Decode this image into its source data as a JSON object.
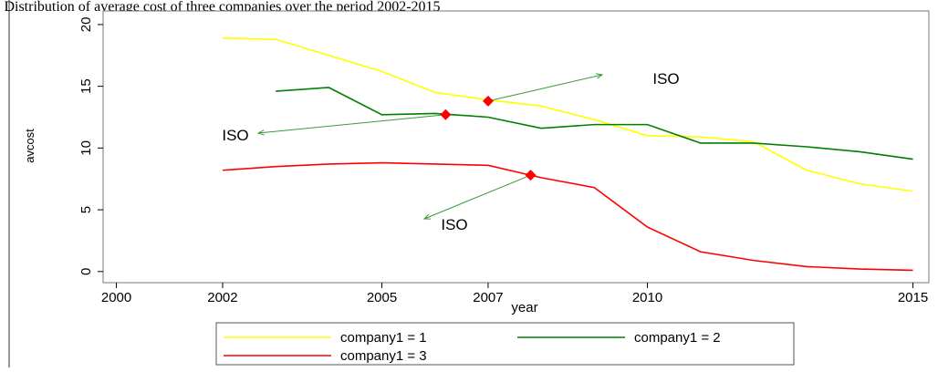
{
  "chart_data": {
    "type": "line",
    "title": ": Distribution of average cost of  three companies over the period 2002-2015",
    "x_label": "year",
    "y_label": "avcost",
    "x": [
      2002,
      2003,
      2004,
      2005,
      2006,
      2007,
      2008,
      2009,
      2010,
      2011,
      2012,
      2013,
      2014,
      2015
    ],
    "series": [
      {
        "name": "company1 = 1",
        "color": "#ffff00",
        "values": [
          18.9,
          18.8,
          17.5,
          16.2,
          14.5,
          13.9,
          13.4,
          12.3,
          11.0,
          10.9,
          10.5,
          8.2,
          7.1,
          6.5
        ]
      },
      {
        "name": "company1 = 2",
        "color": "#007f00",
        "values": [
          null,
          14.6,
          14.9,
          12.7,
          12.8,
          12.5,
          11.6,
          11.9,
          11.9,
          10.4,
          10.4,
          10.1,
          9.7,
          9.1
        ]
      },
      {
        "name": "company1 = 3",
        "color": "#ff0000",
        "values": [
          8.2,
          8.5,
          8.7,
          8.8,
          8.7,
          8.6,
          7.6,
          6.8,
          3.6,
          1.6,
          0.9,
          0.4,
          0.2,
          0.1
        ]
      }
    ],
    "markers": {
      "color": "#ff0000",
      "x": [
        2007,
        2006.2,
        2007.8
      ],
      "y": [
        13.8,
        12.7,
        7.8
      ]
    },
    "annotations": [
      "ISO",
      "ISO",
      "ISO"
    ],
    "xlim": [
      1999.75,
      2015.3
    ],
    "xticks": [
      2000,
      2002,
      2005,
      2007,
      2010,
      2015
    ],
    "ylim": [
      -0.9,
      21.1
    ],
    "yticks": [
      0,
      5,
      10,
      15,
      20
    ]
  }
}
